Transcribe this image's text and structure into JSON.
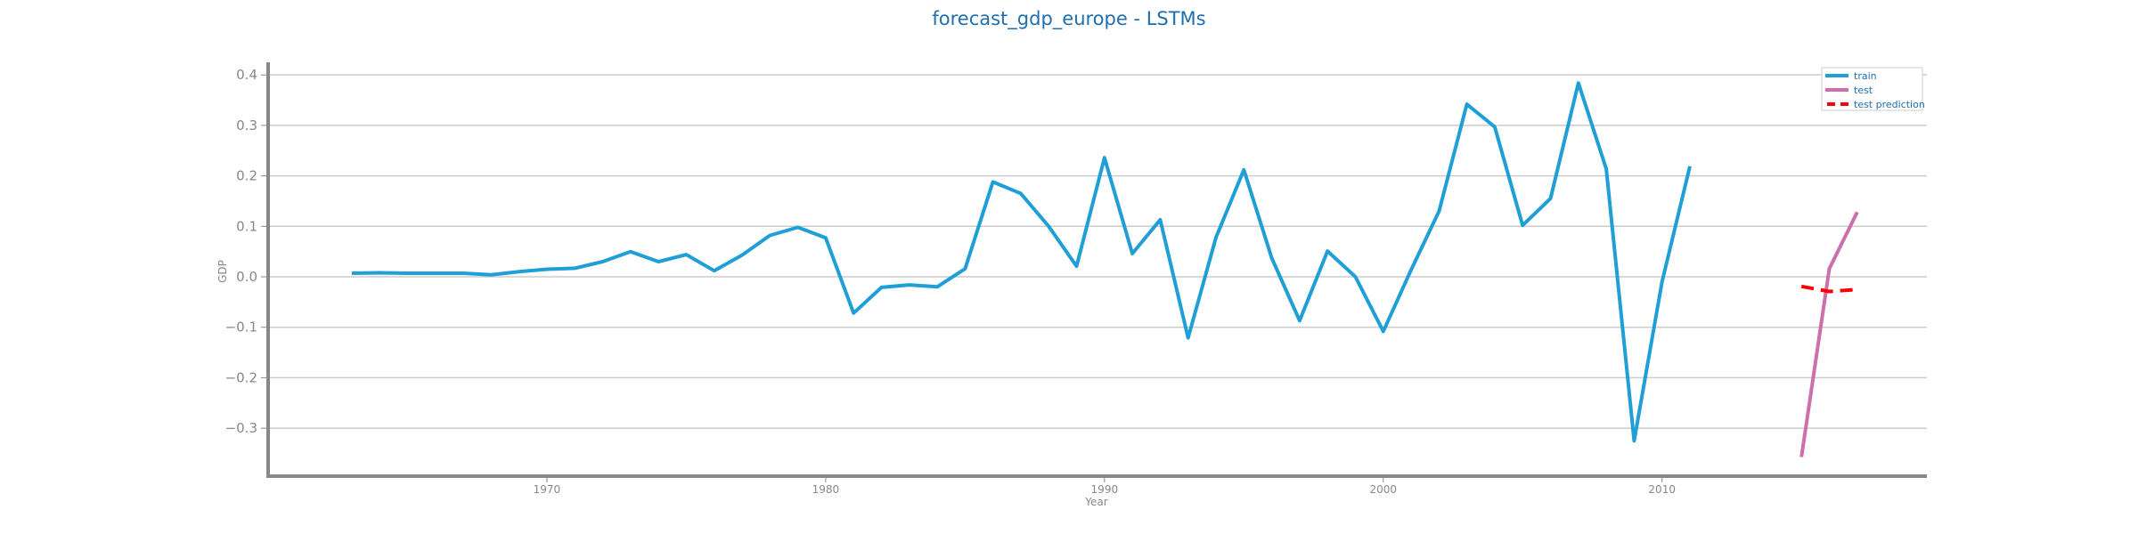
{
  "chart_data": {
    "type": "line",
    "title": "forecast_gdp_europe - LSTMs",
    "xlabel": "Year",
    "ylabel": "GDP",
    "xlim": [
      1960,
      2019.5
    ],
    "ylim": [
      -0.395,
      0.425
    ],
    "x_ticks": [
      1970,
      1980,
      1990,
      2000,
      2010
    ],
    "x_tick_labels": [
      "1970",
      "1980",
      "1990",
      "2000",
      "2010"
    ],
    "y_ticks": [
      -0.3,
      -0.2,
      -0.1,
      0.0,
      0.1,
      0.2,
      0.3,
      0.4
    ],
    "y_tick_labels": [
      "−0.3",
      "−0.2",
      "−0.1",
      "0.0",
      "0.1",
      "0.2",
      "0.3",
      "0.4"
    ],
    "grid": "horizontal",
    "legend_position": "top-right",
    "series": [
      {
        "name": "train",
        "color": "#1f9fd6",
        "style": "solid",
        "x": [
          1963,
          1964,
          1965,
          1966,
          1967,
          1968,
          1969,
          1970,
          1971,
          1972,
          1973,
          1974,
          1975,
          1976,
          1977,
          1978,
          1979,
          1980,
          1981,
          1982,
          1983,
          1984,
          1985,
          1986,
          1987,
          1988,
          1989,
          1990,
          1991,
          1992,
          1993,
          1994,
          1995,
          1996,
          1997,
          1998,
          1999,
          2000,
          2001,
          2002,
          2003,
          2004,
          2005,
          2006,
          2007,
          2008,
          2009,
          2010,
          2011
        ],
        "y": [
          0.007,
          0.008,
          0.007,
          0.007,
          0.007,
          0.004,
          0.01,
          0.015,
          0.017,
          0.03,
          0.05,
          0.03,
          0.044,
          0.012,
          0.043,
          0.082,
          0.098,
          0.077,
          -0.072,
          -0.021,
          -0.016,
          -0.02,
          0.016,
          0.188,
          0.165,
          0.1,
          0.021,
          0.236,
          0.046,
          0.113,
          -0.121,
          0.078,
          0.212,
          0.037,
          -0.087,
          0.051,
          0.0,
          -0.108,
          0.014,
          0.13,
          0.342,
          0.297,
          0.102,
          0.155,
          0.384,
          0.214,
          -0.325,
          -0.01,
          0.219
        ]
      },
      {
        "name": "test",
        "color": "#cc6fad",
        "style": "solid",
        "x": [
          2015,
          2016,
          2017
        ],
        "y": [
          -0.357,
          0.016,
          0.128
        ]
      },
      {
        "name": "test prediction",
        "color": "#ff0000",
        "style": "dashed",
        "x": [
          2015,
          2016,
          2017
        ],
        "y": [
          -0.019,
          -0.029,
          -0.025
        ]
      }
    ]
  }
}
